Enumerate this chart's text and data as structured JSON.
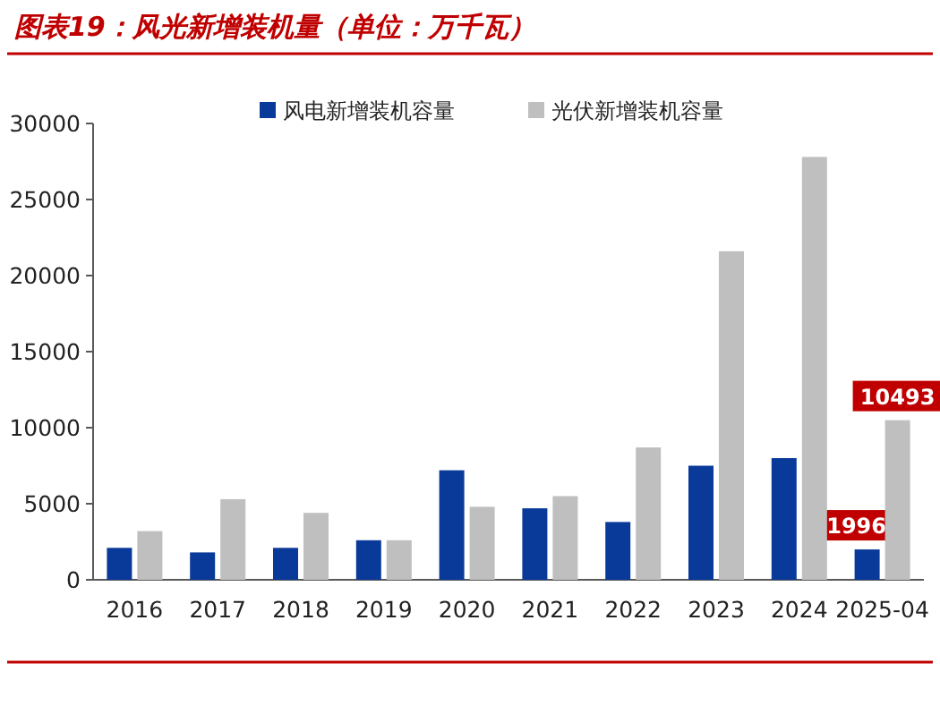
{
  "chart_data": {
    "type": "bar",
    "title": "图表19：风光新增装机量（单位：万千瓦）",
    "categories": [
      "2016",
      "2017",
      "2018",
      "2019",
      "2020",
      "2021",
      "2022",
      "2023",
      "2024",
      "2025-04"
    ],
    "series": [
      {
        "name": "风电新增装机容量",
        "color": "#0a3a99",
        "values": [
          2100,
          1800,
          2100,
          2600,
          7200,
          4700,
          3800,
          7500,
          8000,
          1996
        ],
        "value_labels": [
          null,
          null,
          null,
          null,
          null,
          null,
          null,
          null,
          null,
          "1996"
        ]
      },
      {
        "name": "光伏新增装机容量",
        "color": "#bfbfbf",
        "values": [
          3200,
          5300,
          4400,
          2600,
          4800,
          5500,
          8700,
          21600,
          27800,
          10493
        ],
        "value_labels": [
          null,
          null,
          null,
          null,
          null,
          null,
          null,
          null,
          null,
          "10493"
        ]
      }
    ],
    "ylim": [
      0,
      30000
    ],
    "yticks": [
      0,
      5000,
      10000,
      15000,
      20000,
      25000,
      30000
    ],
    "legend": "top",
    "grid": false
  }
}
